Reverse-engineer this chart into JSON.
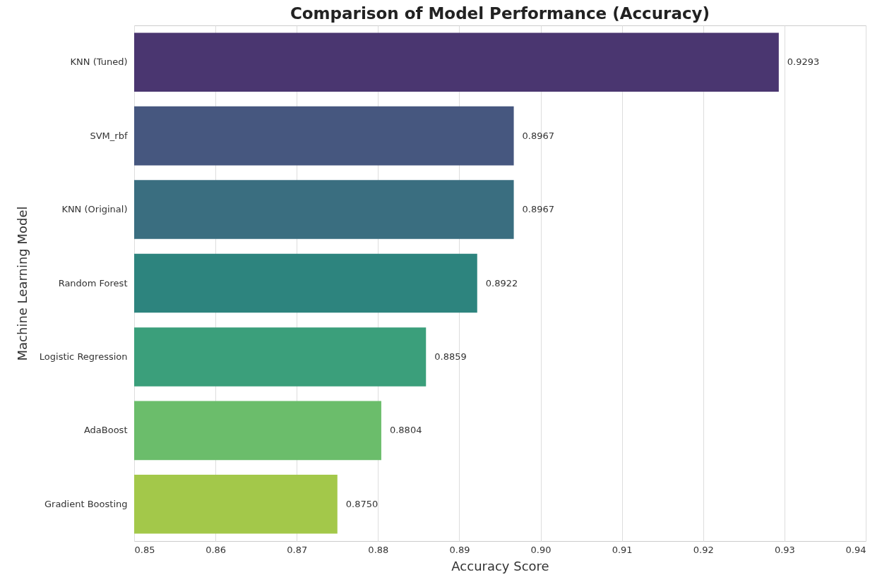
{
  "chart_data": {
    "type": "bar",
    "orientation": "horizontal",
    "title": "Comparison of Model Performance (Accuracy)",
    "xlabel": "Accuracy Score",
    "ylabel": "Machine Learning Model",
    "categories": [
      "KNN (Tuned)",
      "SVM_rbf",
      "KNN (Original)",
      "Random Forest",
      "Logistic Regression",
      "AdaBoost",
      "Gradient Boosting"
    ],
    "values": [
      0.9293,
      0.8967,
      0.8967,
      0.8922,
      0.8859,
      0.8804,
      0.875
    ],
    "value_labels": [
      "0.9293",
      "0.8967",
      "0.8967",
      "0.8922",
      "0.8859",
      "0.8804",
      "0.8750"
    ],
    "colors": [
      "#4a3670",
      "#46577f",
      "#3a6e80",
      "#2d847e",
      "#3b9f7b",
      "#6bbd6b",
      "#a3c84a"
    ],
    "xlim": [
      0.85,
      0.94
    ],
    "xticks": [
      0.85,
      0.86,
      0.87,
      0.88,
      0.89,
      {
        "value": 0.9,
        "label": "0.90"
      },
      0.91,
      0.92,
      0.93,
      0.94
    ],
    "grid": "x"
  }
}
